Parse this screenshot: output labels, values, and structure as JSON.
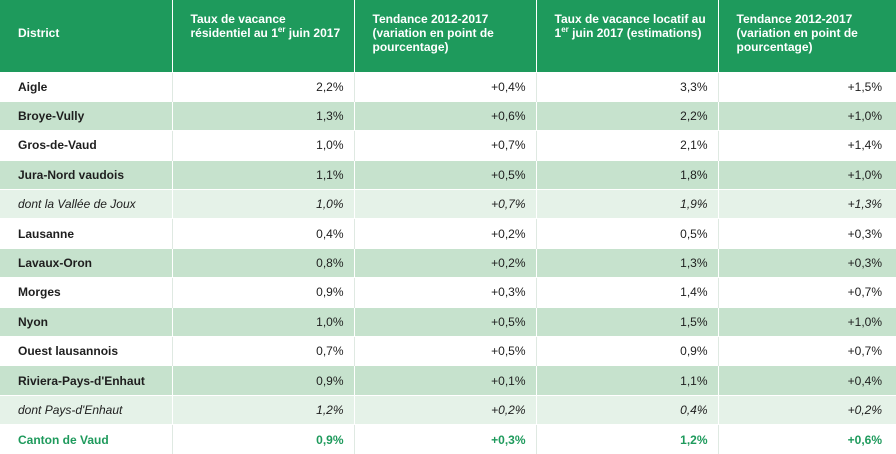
{
  "table": {
    "headers": [
      {
        "text": "District"
      },
      {
        "text_a": "Taux de vacance résidentiel au 1",
        "sup": "er",
        "text_b": " juin 2017"
      },
      {
        "text": "Tendance 2012-2017 (variation en point de pourcentage)"
      },
      {
        "text_a": "Taux de vacance locatif au 1",
        "sup": "er",
        "text_b": " juin 2017 (estimations)"
      },
      {
        "text": "Tendance 2012-2017 (variation en point de pourcentage)"
      }
    ],
    "rows": [
      {
        "style": "white",
        "cells": [
          "Aigle",
          "2,2%",
          "+0,4%",
          "3,3%",
          "+1,5%"
        ]
      },
      {
        "style": "green",
        "cells": [
          "Broye-Vully",
          "1,3%",
          "+0,6%",
          "2,2%",
          "+1,0%"
        ]
      },
      {
        "style": "white",
        "cells": [
          "Gros-de-Vaud",
          "1,0%",
          "+0,7%",
          "2,1%",
          "+1,4%"
        ]
      },
      {
        "style": "green",
        "cells": [
          "Jura-Nord vaudois",
          "1,1%",
          "+0,5%",
          "1,8%",
          "+1,0%"
        ]
      },
      {
        "style": "light",
        "cells": [
          "dont la Vallée de Joux",
          "1,0%",
          "+0,7%",
          "1,9%",
          "+1,3%"
        ]
      },
      {
        "style": "white",
        "cells": [
          "Lausanne",
          "0,4%",
          "+0,2%",
          "0,5%",
          "+0,3%"
        ]
      },
      {
        "style": "green",
        "cells": [
          "Lavaux-Oron",
          "0,8%",
          "+0,2%",
          "1,3%",
          "+0,3%"
        ]
      },
      {
        "style": "white",
        "cells": [
          "Morges",
          "0,9%",
          "+0,3%",
          "1,4%",
          "+0,7%"
        ]
      },
      {
        "style": "green",
        "cells": [
          "Nyon",
          "1,0%",
          "+0,5%",
          "1,5%",
          "+1,0%"
        ]
      },
      {
        "style": "white",
        "cells": [
          "Ouest lausannois",
          "0,7%",
          "+0,5%",
          "0,9%",
          "+0,7%"
        ]
      },
      {
        "style": "green",
        "cells": [
          "Riviera-Pays-d'Enhaut",
          "0,9%",
          "+0,1%",
          "1,1%",
          "+0,4%"
        ]
      },
      {
        "style": "light",
        "cells": [
          "dont Pays-d'Enhaut",
          "1,2%",
          "+0,2%",
          "0,4%",
          "+0,2%"
        ]
      },
      {
        "style": "total",
        "cells": [
          "Canton de Vaud",
          "0,9%",
          "+0,3%",
          "1,2%",
          "+0,6%"
        ]
      }
    ]
  },
  "colors": {
    "header_bg": "#1e9a5c",
    "row_green": "#c6e2cd",
    "row_light": "#e5f2e8",
    "total_text": "#1e9a5c"
  }
}
